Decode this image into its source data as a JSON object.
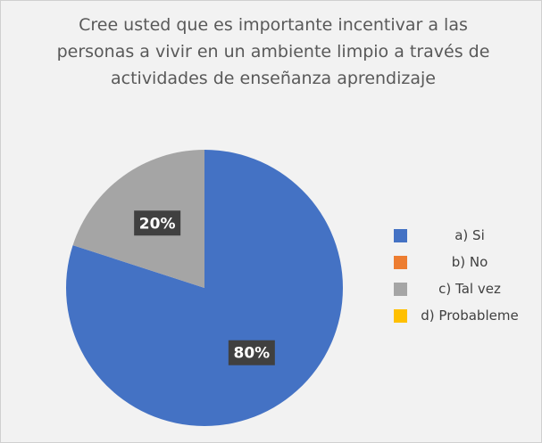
{
  "chart_data": {
    "type": "pie",
    "title": "Cree usted que es importante incentivar a las personas a vivir en un ambiente limpio a través de actividades de enseñanza aprendizaje",
    "categories": [
      "a) Si",
      "b) No",
      "c) Tal vez",
      "d) Probableme"
    ],
    "values": [
      80,
      0,
      20,
      0
    ],
    "value_labels": [
      "80%",
      null,
      "20%",
      null
    ],
    "colors": [
      "#4472c4",
      "#ed7d31",
      "#a5a5a5",
      "#ffc000"
    ],
    "legend": "right"
  }
}
